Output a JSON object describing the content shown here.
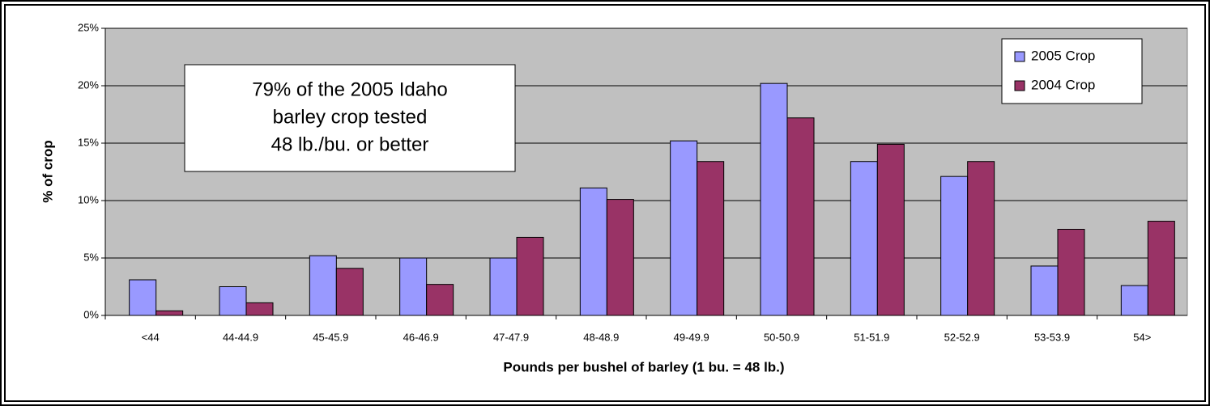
{
  "chart_data": {
    "type": "bar",
    "x_label": "Pounds per bushel of barley (1 bu. = 48 lb.)",
    "y_label": "% of crop",
    "annotation": [
      "79% of the 2005 Idaho",
      "barley crop tested",
      "48 lb./bu. or better"
    ],
    "categories": [
      "<44",
      "44-44.9",
      "45-45.9",
      "46-46.9",
      "47-47.9",
      "48-48.9",
      "49-49.9",
      "50-50.9",
      "51-51.9",
      "52-52.9",
      "53-53.9",
      "54>"
    ],
    "series": [
      {
        "name": "2005 Crop",
        "color": "#9999ff",
        "values": [
          3.1,
          2.5,
          5.2,
          5.0,
          5.0,
          11.1,
          15.2,
          20.2,
          13.4,
          12.1,
          4.3,
          2.6
        ]
      },
      {
        "name": "2004 Crop",
        "color": "#993366",
        "values": [
          0.4,
          1.1,
          4.1,
          2.7,
          6.8,
          10.1,
          13.4,
          17.2,
          14.9,
          13.4,
          7.5,
          8.2
        ]
      }
    ],
    "ylim": [
      0,
      25
    ],
    "yticks": [
      {
        "value": 0,
        "label": "0%"
      },
      {
        "value": 5,
        "label": "5%"
      },
      {
        "value": 10,
        "label": "10%"
      },
      {
        "value": 15,
        "label": "15%"
      },
      {
        "value": 20,
        "label": "20%"
      },
      {
        "value": 25,
        "label": "25%"
      }
    ],
    "grid": true,
    "plot_background": "#c0c0c0",
    "legend_position": "upper right"
  }
}
